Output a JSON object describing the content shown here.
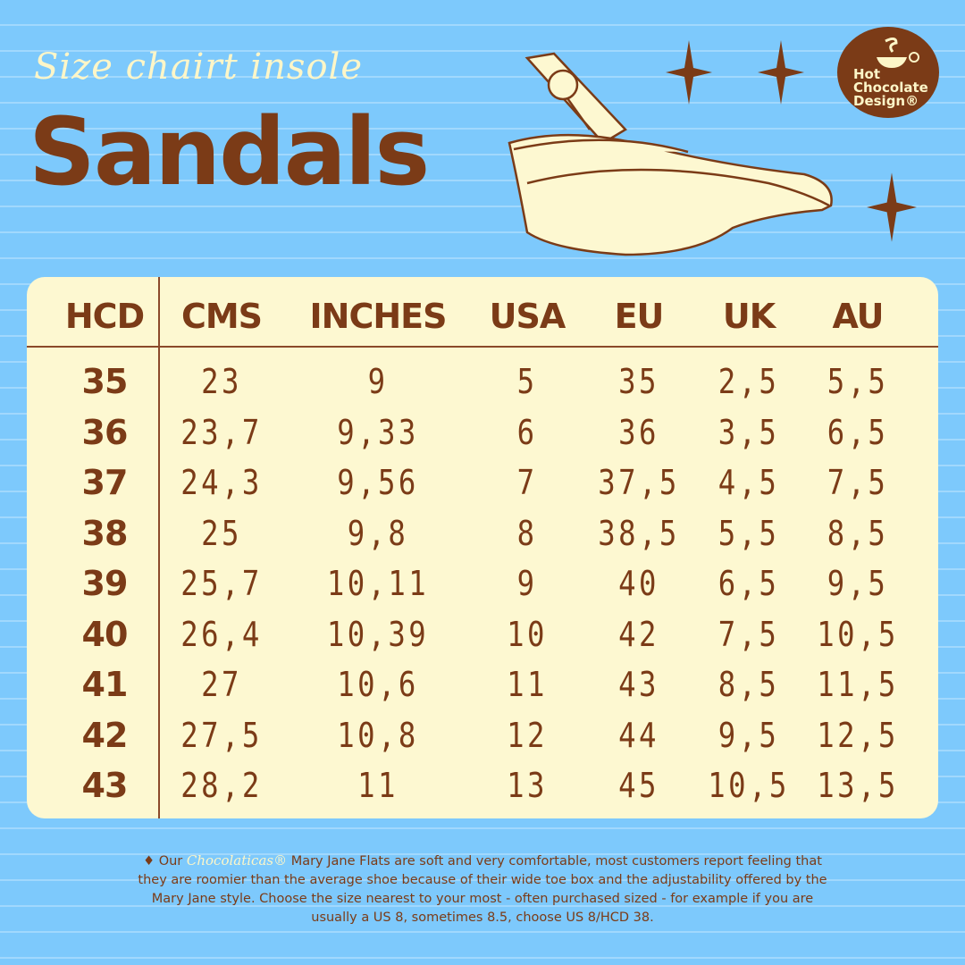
{
  "header": {
    "subtitle": "Size chairt insole",
    "title": "Sandals"
  },
  "logo": {
    "text_line1": "Hot",
    "text_line2": "Chocolate",
    "text_line3": "Design®"
  },
  "colors": {
    "background": "#7dc9fc",
    "brown": "#7b3b17",
    "cream": "#fdf8d1"
  },
  "table": {
    "columns": [
      "HCD",
      "CMS",
      "INCHES",
      "USA",
      "EU",
      "UK",
      "AU"
    ],
    "rows": [
      [
        "35",
        "23",
        "9",
        "5",
        "35",
        "2,5",
        "5,5"
      ],
      [
        "36",
        "23,7",
        "9,33",
        "6",
        "36",
        "3,5",
        "6,5"
      ],
      [
        "37",
        "24,3",
        "9,56",
        "7",
        "37,5",
        "4,5",
        "7,5"
      ],
      [
        "38",
        "25",
        "9,8",
        "8",
        "38,5",
        "5,5",
        "8,5"
      ],
      [
        "39",
        "25,7",
        "10,11",
        "9",
        "40",
        "6,5",
        "9,5"
      ],
      [
        "40",
        "26,4",
        "10,39",
        "10",
        "42",
        "7,5",
        "10,5"
      ],
      [
        "41",
        "27",
        "10,6",
        "11",
        "43",
        "8,5",
        "11,5"
      ],
      [
        "42",
        "27,5",
        "10,8",
        "12",
        "44",
        "9,5",
        "12,5"
      ],
      [
        "43",
        "28,2",
        "11",
        "13",
        "45",
        "10,5",
        "13,5"
      ]
    ]
  },
  "note": {
    "bullet": "♦",
    "prefix": "Our",
    "brand": "Chocolaticas®",
    "text": "Mary Jane Flats are soft and very comfortable, most customers report feeling that they are roomier than the average shoe because of their wide toe box and the adjustability offered by the Mary Jane style. Choose the size nearest to your most - often  purchased sized - for example if you are usually a US 8, sometimes 8.5, choose US 8/HCD 38."
  }
}
